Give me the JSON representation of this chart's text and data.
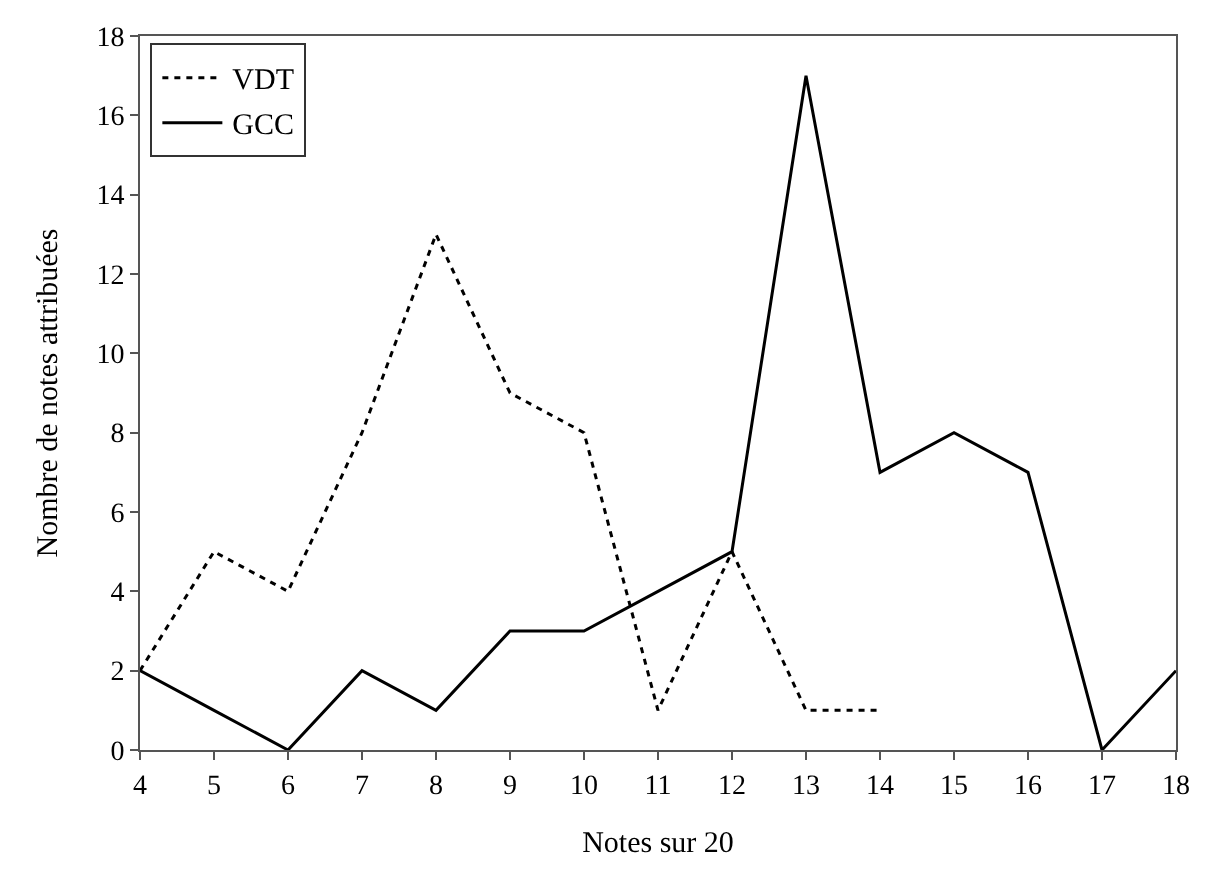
{
  "chart_data": {
    "type": "line",
    "xlabel": "Notes sur 20",
    "ylabel": "Nombre de notes attribuées",
    "xlim": [
      4,
      18
    ],
    "xticks": [
      4,
      5,
      6,
      7,
      8,
      9,
      10,
      11,
      12,
      13,
      14,
      15,
      16,
      17,
      18
    ],
    "ylim": [
      0,
      18
    ],
    "yticks": [
      0,
      2,
      4,
      6,
      8,
      10,
      12,
      14,
      16,
      18
    ],
    "legend": "top left",
    "marker": "none",
    "series": [
      {
        "name": "VDT",
        "color": "#000000",
        "line_style": "dotted",
        "x": [
          4,
          5,
          6,
          7,
          8,
          9,
          10,
          11,
          12,
          13,
          14
        ],
        "values": [
          2,
          5,
          4,
          8,
          13,
          9,
          8,
          1,
          5,
          1,
          1
        ]
      },
      {
        "name": "GCC",
        "color": "#000000",
        "line_style": "solid",
        "x": [
          4,
          5,
          6,
          7,
          8,
          9,
          10,
          11,
          12,
          13,
          14,
          15,
          16,
          17,
          18
        ],
        "values": [
          2,
          1,
          0,
          2,
          1,
          3,
          3,
          4,
          5,
          17,
          7,
          8,
          7,
          0,
          2
        ]
      }
    ]
  }
}
